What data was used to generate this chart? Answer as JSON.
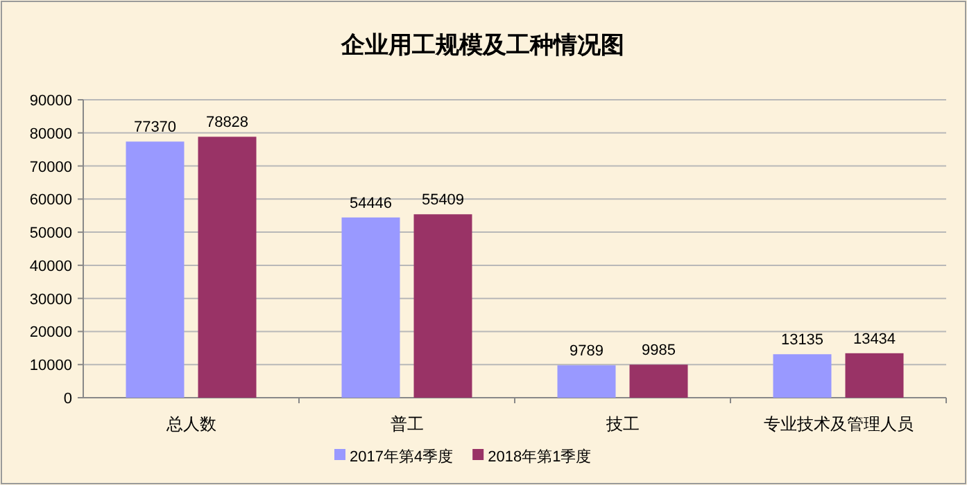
{
  "chart_data": {
    "type": "bar",
    "title": "企业用工规模及工种情况图",
    "categories": [
      "总人数",
      "普工",
      "技工",
      "专业技术及管理人员"
    ],
    "series": [
      {
        "name": "2017年第4季度",
        "color": "#9999ff",
        "values": [
          77370,
          54446,
          9789,
          13135
        ]
      },
      {
        "name": "2018年第1季度",
        "color": "#993366",
        "values": [
          78828,
          55409,
          9985,
          13434
        ]
      }
    ],
    "ylim": [
      0,
      90000
    ],
    "yticks": [
      0,
      10000,
      20000,
      30000,
      40000,
      50000,
      60000,
      70000,
      80000,
      90000
    ],
    "grid": "y",
    "legend": "bottom",
    "data_labels": true
  }
}
